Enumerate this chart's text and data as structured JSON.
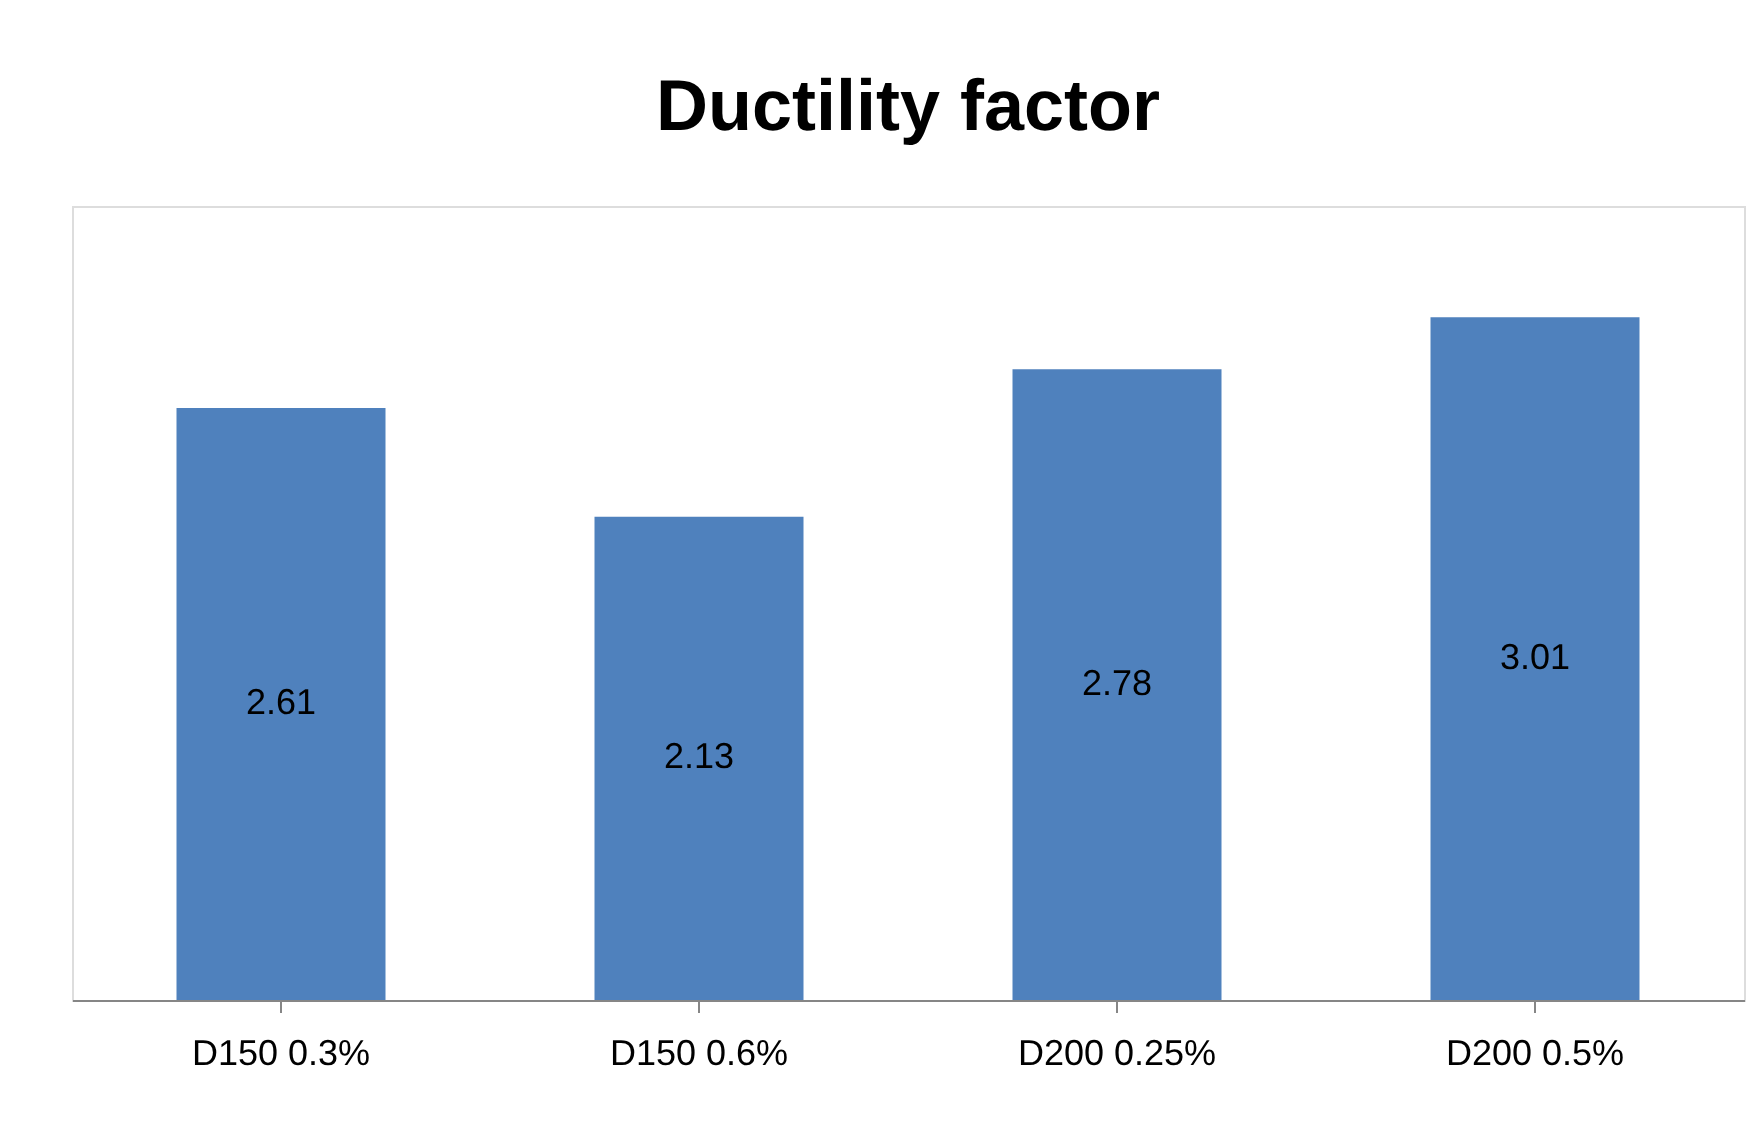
{
  "chart_data": {
    "type": "bar",
    "title": "Ductility factor",
    "categories": [
      "D150 0.3%",
      "D150 0.6%",
      "D200 0.25%",
      "D200 0.5%"
    ],
    "values": [
      2.61,
      2.13,
      2.78,
      3.01
    ],
    "color": "#4f81bd",
    "data_labels": true
  }
}
